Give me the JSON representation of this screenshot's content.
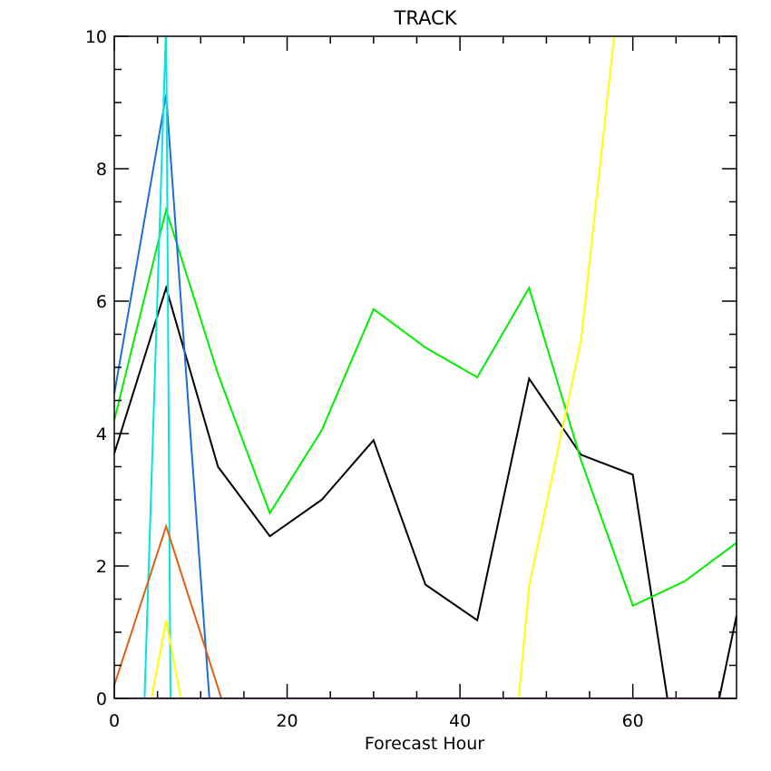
{
  "chart_data": {
    "type": "line",
    "title": "TRACK",
    "xlabel": "Forecast Hour",
    "ylabel": "",
    "xlim": [
      0,
      72
    ],
    "ylim": [
      0,
      10
    ],
    "x_ticks": [
      0,
      20,
      40,
      60
    ],
    "y_ticks": [
      0,
      2,
      4,
      6,
      8,
      10
    ],
    "grid": false,
    "legend": "none",
    "series": [
      {
        "color": "#000000",
        "x": [
          0,
          6,
          12,
          18,
          24,
          30,
          36,
          42,
          48,
          54,
          60,
          64,
          70,
          72
        ],
        "y": [
          3.7,
          6.2,
          3.5,
          2.45,
          3.0,
          3.9,
          1.72,
          1.18,
          4.83,
          3.68,
          3.38,
          0,
          0,
          1.25
        ]
      },
      {
        "color": "#00ee00",
        "x": [
          0,
          6,
          12,
          18,
          24,
          30,
          36,
          42,
          48,
          54,
          60,
          66,
          72
        ],
        "y": [
          4.2,
          7.38,
          4.9,
          2.8,
          4.05,
          5.88,
          5.3,
          4.85,
          6.2,
          3.6,
          1.4,
          1.77,
          2.35
        ]
      },
      {
        "color": "#1a6fd6",
        "x": [
          0,
          6,
          11
        ],
        "y": [
          4.6,
          9.12,
          0
        ]
      },
      {
        "color": "#00e5e5",
        "x": [
          3.5,
          6,
          6.5
        ],
        "y": [
          0,
          10.2,
          0
        ]
      },
      {
        "color": "#e06010",
        "x": [
          0,
          6,
          12.4
        ],
        "y": [
          0.2,
          2.6,
          0
        ]
      },
      {
        "color": "#ffff00",
        "x": [
          4.3,
          6,
          7.7
        ],
        "y": [
          0,
          1.18,
          0
        ]
      },
      {
        "color": "#ffff00",
        "x": [
          46.8,
          48,
          54,
          58
        ],
        "y": [
          0,
          1.7,
          5.4,
          10.2
        ]
      },
      {
        "color": "#a000a0",
        "x": [
          0,
          72
        ],
        "y": [
          0,
          0
        ]
      }
    ]
  }
}
